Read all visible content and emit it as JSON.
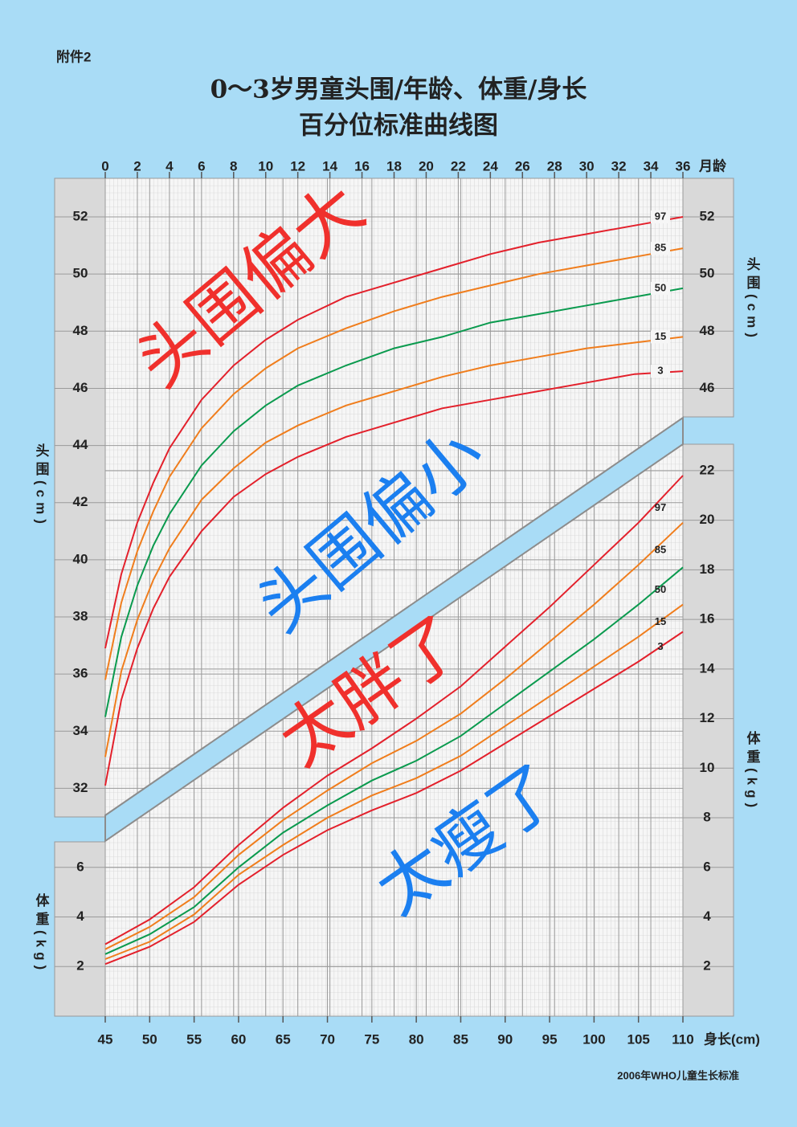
{
  "attachment": "附件2",
  "title": [
    "0～3岁男童头围/年龄、体重/身长",
    "百分位标准曲线图"
  ],
  "source": "2006年WHO儿童生长标准",
  "annotations": [
    "头围偏大",
    "头围偏小",
    "太胖了",
    "太瘦了"
  ],
  "chart_data": [
    {
      "type": "line",
      "x_label": "月龄",
      "y_label": "头围(cm)",
      "x": [
        0,
        1,
        2,
        3,
        4,
        6,
        8,
        10,
        12,
        15,
        18,
        21,
        24,
        27,
        30,
        33,
        36
      ],
      "xlim": [
        0,
        36
      ],
      "xticks": [
        0,
        2,
        4,
        6,
        8,
        10,
        12,
        14,
        16,
        18,
        20,
        22,
        24,
        26,
        28,
        30,
        32,
        34,
        36
      ],
      "ylim": [
        31,
        53.35
      ],
      "yticks": [
        32,
        34,
        36,
        38,
        40,
        42,
        44,
        46,
        48,
        50,
        52
      ],
      "y2lim": [
        31,
        53.35
      ],
      "y2ticks": [
        46,
        48,
        50,
        52
      ],
      "series": [
        {
          "name": "97",
          "color": "#e3202b",
          "values": [
            36.9,
            39.5,
            41.3,
            42.7,
            43.9,
            45.6,
            46.8,
            47.7,
            48.4,
            49.2,
            49.7,
            50.2,
            50.7,
            51.1,
            51.4,
            51.7,
            52.0
          ]
        },
        {
          "name": "85",
          "color": "#f07d1c",
          "values": [
            35.8,
            38.5,
            40.3,
            41.7,
            42.9,
            44.6,
            45.8,
            46.7,
            47.4,
            48.1,
            48.7,
            49.2,
            49.6,
            50.0,
            50.3,
            50.6,
            50.9
          ]
        },
        {
          "name": "50",
          "color": "#0a9a4e",
          "values": [
            34.5,
            37.3,
            39.1,
            40.5,
            41.6,
            43.3,
            44.5,
            45.4,
            46.1,
            46.8,
            47.4,
            47.8,
            48.3,
            48.6,
            48.9,
            49.2,
            49.5
          ]
        },
        {
          "name": "15",
          "color": "#f07d1c",
          "values": [
            33.1,
            36.1,
            37.9,
            39.3,
            40.4,
            42.1,
            43.2,
            44.1,
            44.7,
            45.4,
            45.9,
            46.4,
            46.8,
            47.1,
            47.4,
            47.6,
            47.8
          ]
        },
        {
          "name": "3",
          "color": "#e3202b",
          "values": [
            32.1,
            35.1,
            36.9,
            38.3,
            39.4,
            41.0,
            42.2,
            43.0,
            43.6,
            44.3,
            44.8,
            45.3,
            45.6,
            45.9,
            46.2,
            46.5,
            46.6
          ]
        }
      ]
    },
    {
      "type": "line",
      "x_label": "身长(cm)",
      "y_label": "体重(kg)",
      "x": [
        45,
        50,
        55,
        60,
        65,
        70,
        75,
        80,
        85,
        90,
        95,
        100,
        105,
        110
      ],
      "xlim": [
        45,
        110
      ],
      "xticks": [
        45,
        50,
        55,
        60,
        65,
        70,
        75,
        80,
        85,
        90,
        95,
        100,
        105,
        110
      ],
      "ylim": [
        0,
        23
      ],
      "yticks": [
        2,
        4,
        6
      ],
      "y2lim": [
        0,
        23
      ],
      "y2ticks": [
        2,
        4,
        6,
        8,
        10,
        12,
        14,
        16,
        18,
        20,
        22
      ],
      "series": [
        {
          "name": "97",
          "color": "#e3202b",
          "values": [
            2.9,
            3.9,
            5.2,
            6.9,
            8.4,
            9.7,
            10.8,
            12.0,
            13.3,
            14.9,
            16.5,
            18.2,
            19.9,
            21.8
          ]
        },
        {
          "name": "85",
          "color": "#f07d1c",
          "values": [
            2.7,
            3.6,
            4.8,
            6.5,
            7.9,
            9.1,
            10.2,
            11.1,
            12.2,
            13.6,
            15.1,
            16.6,
            18.2,
            19.9
          ]
        },
        {
          "name": "50",
          "color": "#0a9a4e",
          "values": [
            2.5,
            3.3,
            4.4,
            6.0,
            7.4,
            8.5,
            9.5,
            10.3,
            11.3,
            12.6,
            13.9,
            15.2,
            16.6,
            18.1
          ]
        },
        {
          "name": "15",
          "color": "#f07d1c",
          "values": [
            2.3,
            3.0,
            4.1,
            5.7,
            6.9,
            8.0,
            8.9,
            9.6,
            10.5,
            11.7,
            12.9,
            14.1,
            15.3,
            16.6
          ]
        },
        {
          "name": "3",
          "color": "#e3202b",
          "values": [
            2.1,
            2.8,
            3.8,
            5.3,
            6.5,
            7.5,
            8.3,
            9.0,
            9.9,
            11.0,
            12.1,
            13.2,
            14.3,
            15.5
          ]
        }
      ]
    }
  ]
}
